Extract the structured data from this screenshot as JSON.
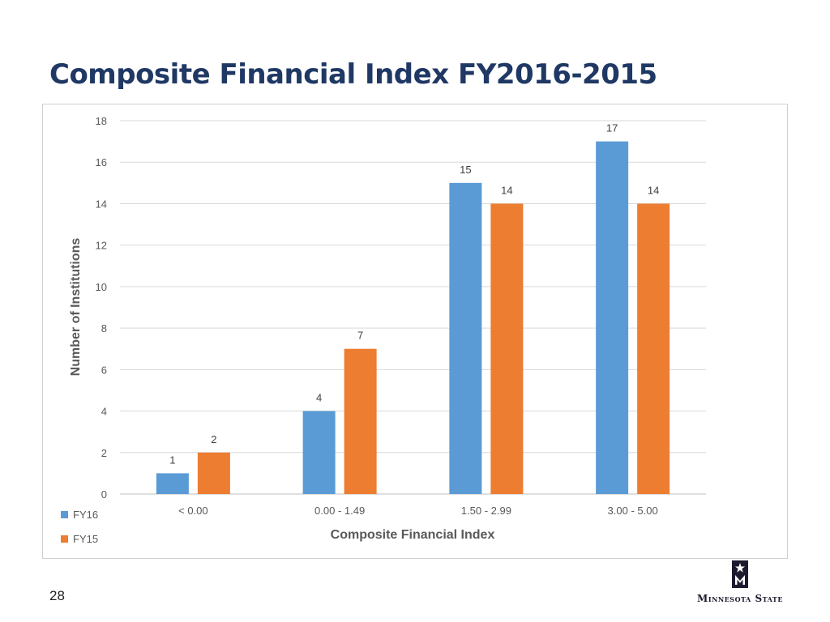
{
  "slide": {
    "title": "Composite Financial Index FY2016-2015",
    "page_number": "28",
    "logo_text": "Minnesota State"
  },
  "chart_data": {
    "type": "bar",
    "categories": [
      "< 0.00",
      "0.00 - 1.49",
      "1.50 - 2.99",
      "3.00 - 5.00"
    ],
    "series": [
      {
        "name": "FY16",
        "values": [
          1,
          4,
          15,
          17
        ],
        "color": "#5b9bd5"
      },
      {
        "name": "FY15",
        "values": [
          2,
          7,
          14,
          14
        ],
        "color": "#ed7d31"
      }
    ],
    "xlabel": "Composite Financial Index",
    "ylabel": "Number of Institutions",
    "ylim": [
      0,
      18
    ],
    "yticks": [
      0,
      2,
      4,
      6,
      8,
      10,
      12,
      14,
      16,
      18
    ],
    "grid": true,
    "legend_position": "bottom-left",
    "data_labels": true
  }
}
